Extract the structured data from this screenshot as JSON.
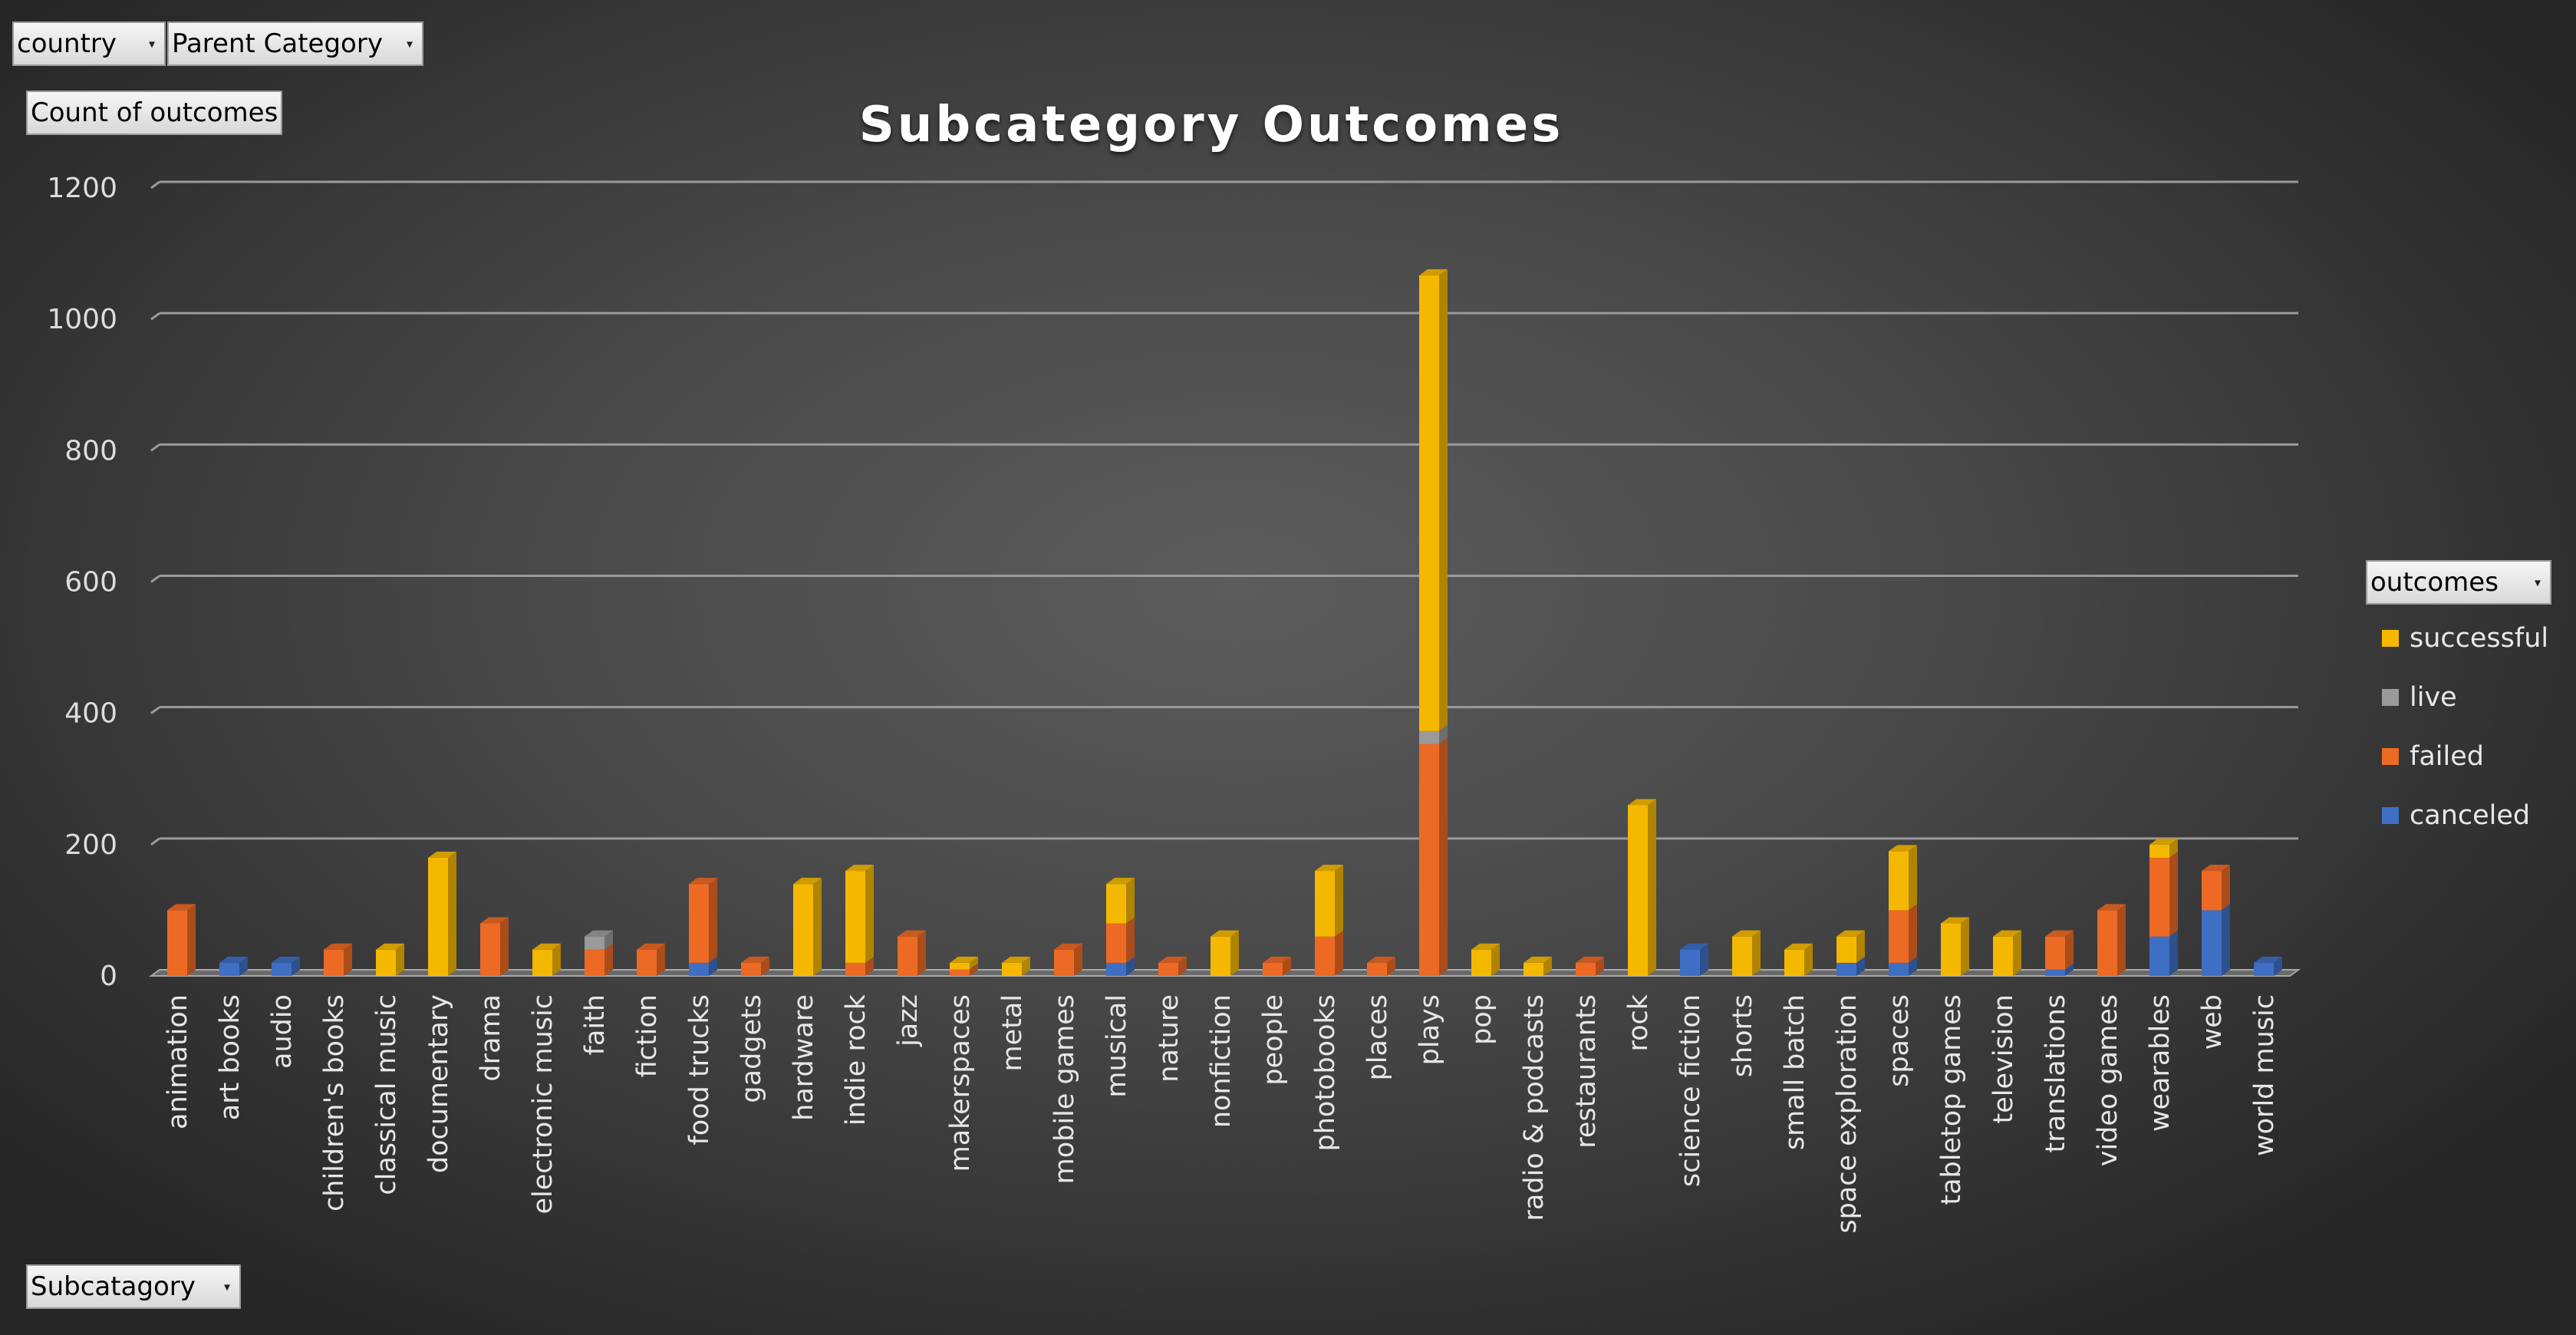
{
  "filters": {
    "country_label": "country",
    "parent_category_label": "Parent Category",
    "values_label": "Count of outcomes",
    "axis_field_label": "Subcatagory",
    "legend_field_label": "outcomes"
  },
  "colors": {
    "successful": "#f5b800",
    "live": "#9a9a9a",
    "failed": "#ed6a25",
    "canceled": "#3f6fc5"
  },
  "icons": {
    "dropdown": "dropdown-arrow-icon"
  },
  "chart_data": {
    "type": "bar",
    "stacked": true,
    "style": "3d-column",
    "title": "Subcategory Outcomes",
    "xlabel": "",
    "ylabel": "",
    "ylim": [
      0,
      1200
    ],
    "yticks": [
      0,
      200,
      400,
      600,
      800,
      1000,
      1200
    ],
    "grid": true,
    "legend": "right",
    "categories": [
      "animation",
      "art books",
      "audio",
      "children's books",
      "classical music",
      "documentary",
      "drama",
      "electronic music",
      "faith",
      "fiction",
      "food trucks",
      "gadgets",
      "hardware",
      "indie rock",
      "jazz",
      "makerspaces",
      "metal",
      "mobile games",
      "musical",
      "nature",
      "nonfiction",
      "people",
      "photobooks",
      "places",
      "plays",
      "pop",
      "radio & podcasts",
      "restaurants",
      "rock",
      "science fiction",
      "shorts",
      "small batch",
      "space exploration",
      "spaces",
      "tabletop games",
      "television",
      "translations",
      "video games",
      "wearables",
      "web",
      "world music"
    ],
    "series": [
      {
        "name": "canceled",
        "values": [
          0,
          20,
          20,
          0,
          0,
          0,
          0,
          0,
          0,
          0,
          20,
          0,
          0,
          0,
          0,
          0,
          0,
          0,
          20,
          0,
          0,
          0,
          0,
          0,
          0,
          0,
          0,
          0,
          0,
          40,
          0,
          0,
          20,
          20,
          0,
          0,
          10,
          0,
          60,
          100,
          20
        ]
      },
      {
        "name": "failed",
        "values": [
          100,
          0,
          0,
          40,
          0,
          0,
          80,
          0,
          40,
          40,
          120,
          20,
          0,
          20,
          60,
          10,
          0,
          40,
          60,
          20,
          0,
          20,
          60,
          20,
          353,
          0,
          0,
          20,
          0,
          0,
          0,
          0,
          0,
          80,
          0,
          0,
          50,
          100,
          120,
          60,
          0
        ]
      },
      {
        "name": "live",
        "values": [
          0,
          0,
          0,
          0,
          0,
          0,
          0,
          0,
          20,
          0,
          0,
          0,
          0,
          0,
          0,
          0,
          0,
          0,
          0,
          0,
          0,
          0,
          0,
          0,
          20,
          0,
          0,
          0,
          0,
          0,
          0,
          0,
          0,
          0,
          0,
          0,
          0,
          0,
          0,
          0,
          0
        ]
      },
      {
        "name": "successful",
        "values": [
          0,
          0,
          0,
          0,
          40,
          180,
          0,
          40,
          0,
          0,
          0,
          0,
          140,
          140,
          0,
          10,
          20,
          0,
          60,
          0,
          60,
          0,
          100,
          0,
          694,
          40,
          20,
          0,
          260,
          0,
          60,
          40,
          40,
          90,
          80,
          60,
          0,
          0,
          20,
          0,
          0
        ]
      }
    ]
  }
}
